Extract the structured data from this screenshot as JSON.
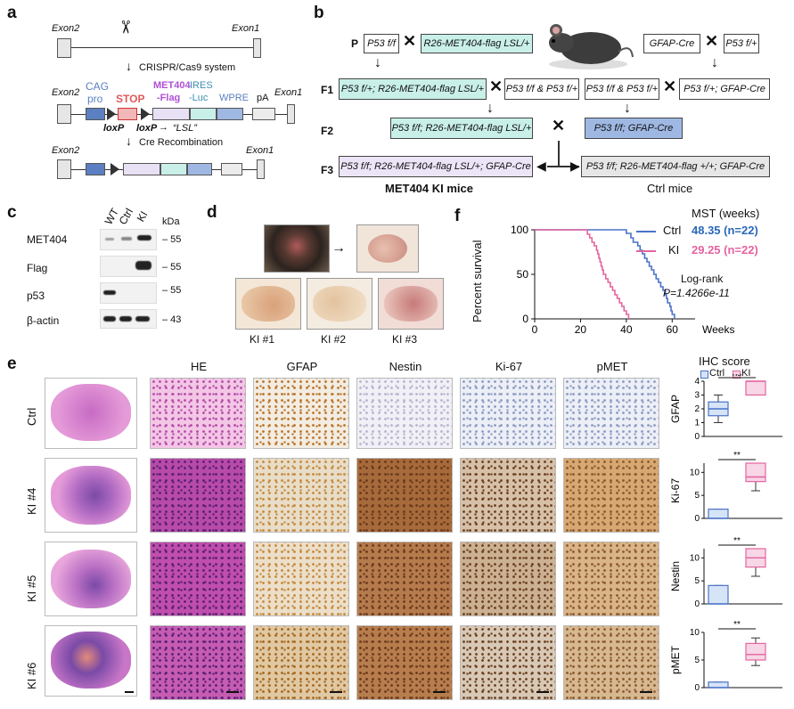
{
  "panel_labels": {
    "a": "a",
    "b": "b",
    "c": "c",
    "d": "d",
    "e": "e",
    "f": "f"
  },
  "a": {
    "exon2": "Exon2",
    "exon1": "Exon1",
    "crispr": "CRISPR/Cas9 system",
    "cag": "CAG",
    "pro": "pro",
    "stop": "STOP",
    "met404": "MET404",
    "flag": "-Flag",
    "ires": "IRES",
    "luc": "-Luc",
    "wpre": "WPRE",
    "pa": "pA",
    "loxp1": "loxP",
    "loxp2": "loxP",
    "lsl": "“LSL”",
    "cre": "Cre Recombination",
    "colors": {
      "blue": "#5b7fc0",
      "stop": "#e05a5a",
      "purple": "#b08bd6",
      "teal": "#8fd7cf",
      "lav": "#e8e0f4",
      "gray": "#d8d8d8"
    }
  },
  "b": {
    "p": "P",
    "f1": "F1",
    "f2": "F2",
    "f3": "F3",
    "p_left": "P53 f/f",
    "p_mid": "R26-MET404-flag LSL/+",
    "p_right1": "GFAP-Cre",
    "p_right2": "P53 f/+",
    "f1_a": "P53 f/+; R26-MET404-flag LSL/+",
    "f1_b": "P53 f/f & P53 f/+",
    "f1_c": "P53 f/f & P53 f/+",
    "f1_d": "P53 f/+; GFAP-Cre",
    "f2_a": "P53 f/f; R26-MET404-flag LSL/+",
    "f2_b": "P53 f/f; GFAP-Cre",
    "f3_a": "P53 f/f; R26-MET404-flag LSL/+; GFAP-Cre",
    "f3_b": "P53 f/f; R26-MET404-flag +/+; GFAP-Cre",
    "ki_title": "MET404 KI mice",
    "ctrl_title": "Ctrl mice",
    "colors": {
      "teal": "#c9efe9",
      "purple": "#ece4f7",
      "blue": "#9fb8e3",
      "gray": "#e6e6e6"
    }
  },
  "c": {
    "lanes": [
      "WT",
      "Ctrl",
      "KI"
    ],
    "kda": "kDa",
    "rows": [
      {
        "name": "MET404",
        "kda": "– 55"
      },
      {
        "name": "Flag",
        "kda": "– 55"
      },
      {
        "name": "p53",
        "kda": "– 55"
      },
      {
        "name": "β-actin",
        "kda": "– 43"
      }
    ]
  },
  "d": {
    "labels": [
      "KI #1",
      "KI #2",
      "KI #3"
    ]
  },
  "f": {
    "legend_title": "MST (weeks)",
    "ylabel": "Percent survival",
    "xlabel": "Weeks",
    "logrank": "Log-rank",
    "pvalue": "P=1.4266e-11",
    "chart_data": {
      "type": "line",
      "x_ticks": [
        0,
        20,
        40,
        60
      ],
      "y_ticks": [
        0,
        50,
        100
      ],
      "xlim": [
        0,
        70
      ],
      "ylim": [
        0,
        100
      ],
      "series": [
        {
          "name": "Ctrl",
          "color": "#4a72c9",
          "mst": "48.35 (n=22)",
          "points": [
            [
              0,
              100
            ],
            [
              38,
              100
            ],
            [
              40,
              96
            ],
            [
              42,
              91
            ],
            [
              43,
              86
            ],
            [
              45,
              82
            ],
            [
              46,
              77
            ],
            [
              47,
              73
            ],
            [
              48,
              68
            ],
            [
              49,
              64
            ],
            [
              50,
              59
            ],
            [
              51,
              55
            ],
            [
              52,
              50
            ],
            [
              53,
              45
            ],
            [
              54,
              41
            ],
            [
              55,
              36
            ],
            [
              56,
              32
            ],
            [
              57,
              27
            ],
            [
              57.5,
              23
            ],
            [
              58,
              18
            ],
            [
              59,
              14
            ],
            [
              59.5,
              9
            ],
            [
              60,
              5
            ],
            [
              61,
              0
            ]
          ]
        },
        {
          "name": "KI",
          "color": "#e4639f",
          "mst": "29.25 (n=22)",
          "points": [
            [
              0,
              100
            ],
            [
              22,
              100
            ],
            [
              23,
              95
            ],
            [
              24,
              91
            ],
            [
              25,
              86
            ],
            [
              26,
              82
            ],
            [
              27,
              77
            ],
            [
              27.5,
              73
            ],
            [
              28,
              68
            ],
            [
              28.5,
              64
            ],
            [
              29,
              59
            ],
            [
              29.5,
              55
            ],
            [
              30,
              50
            ],
            [
              31,
              45
            ],
            [
              32,
              41
            ],
            [
              33,
              36
            ],
            [
              34,
              32
            ],
            [
              35,
              27
            ],
            [
              36,
              23
            ],
            [
              37,
              18
            ],
            [
              38,
              14
            ],
            [
              39,
              9
            ],
            [
              40,
              5
            ],
            [
              41,
              0
            ]
          ]
        }
      ]
    }
  },
  "e": {
    "rows": [
      "Ctrl",
      "KI #4",
      "KI #5",
      "KI #6"
    ],
    "cols": [
      "HE",
      "GFAP",
      "Nestin",
      "Ki-67",
      "pMET"
    ],
    "ihc_title": "IHC score",
    "legend": [
      "Ctrl",
      "KI"
    ],
    "chart_data": [
      {
        "type": "box",
        "ylabel": "GFAP",
        "ticks": [
          0,
          1,
          2,
          3,
          4
        ],
        "ylim": [
          0,
          4
        ],
        "sig": "ns",
        "groups": [
          {
            "name": "Ctrl",
            "min": 1,
            "q1": 1.5,
            "median": 2,
            "q3": 2.5,
            "max": 3
          },
          {
            "name": "KI",
            "min": 3,
            "q1": 3,
            "median": 4,
            "q3": 4,
            "max": 4
          }
        ]
      },
      {
        "type": "box",
        "ylabel": "Ki-67",
        "ticks": [
          0,
          5,
          10
        ],
        "ylim": [
          0,
          12
        ],
        "sig": "**",
        "groups": [
          {
            "name": "Ctrl",
            "min": 0,
            "q1": 0,
            "median": 0,
            "q3": 2,
            "max": 2
          },
          {
            "name": "KI",
            "min": 6,
            "q1": 8,
            "median": 9,
            "q3": 12,
            "max": 12
          }
        ]
      },
      {
        "type": "box",
        "ylabel": "Nestin",
        "ticks": [
          0,
          5,
          10
        ],
        "ylim": [
          0,
          12
        ],
        "sig": "**",
        "groups": [
          {
            "name": "Ctrl",
            "min": 0,
            "q1": 0,
            "median": 0,
            "q3": 4,
            "max": 4
          },
          {
            "name": "KI",
            "min": 6,
            "q1": 8,
            "median": 10,
            "q3": 12,
            "max": 12
          }
        ]
      },
      {
        "type": "box",
        "ylabel": "pMET",
        "ticks": [
          0,
          5,
          10
        ],
        "ylim": [
          0,
          10
        ],
        "sig": "**",
        "groups": [
          {
            "name": "Ctrl",
            "min": 0,
            "q1": 0,
            "median": 0,
            "q3": 1,
            "max": 1
          },
          {
            "name": "KI",
            "min": 4,
            "q1": 5,
            "median": 6,
            "q3": 8,
            "max": 9
          }
        ]
      }
    ]
  }
}
